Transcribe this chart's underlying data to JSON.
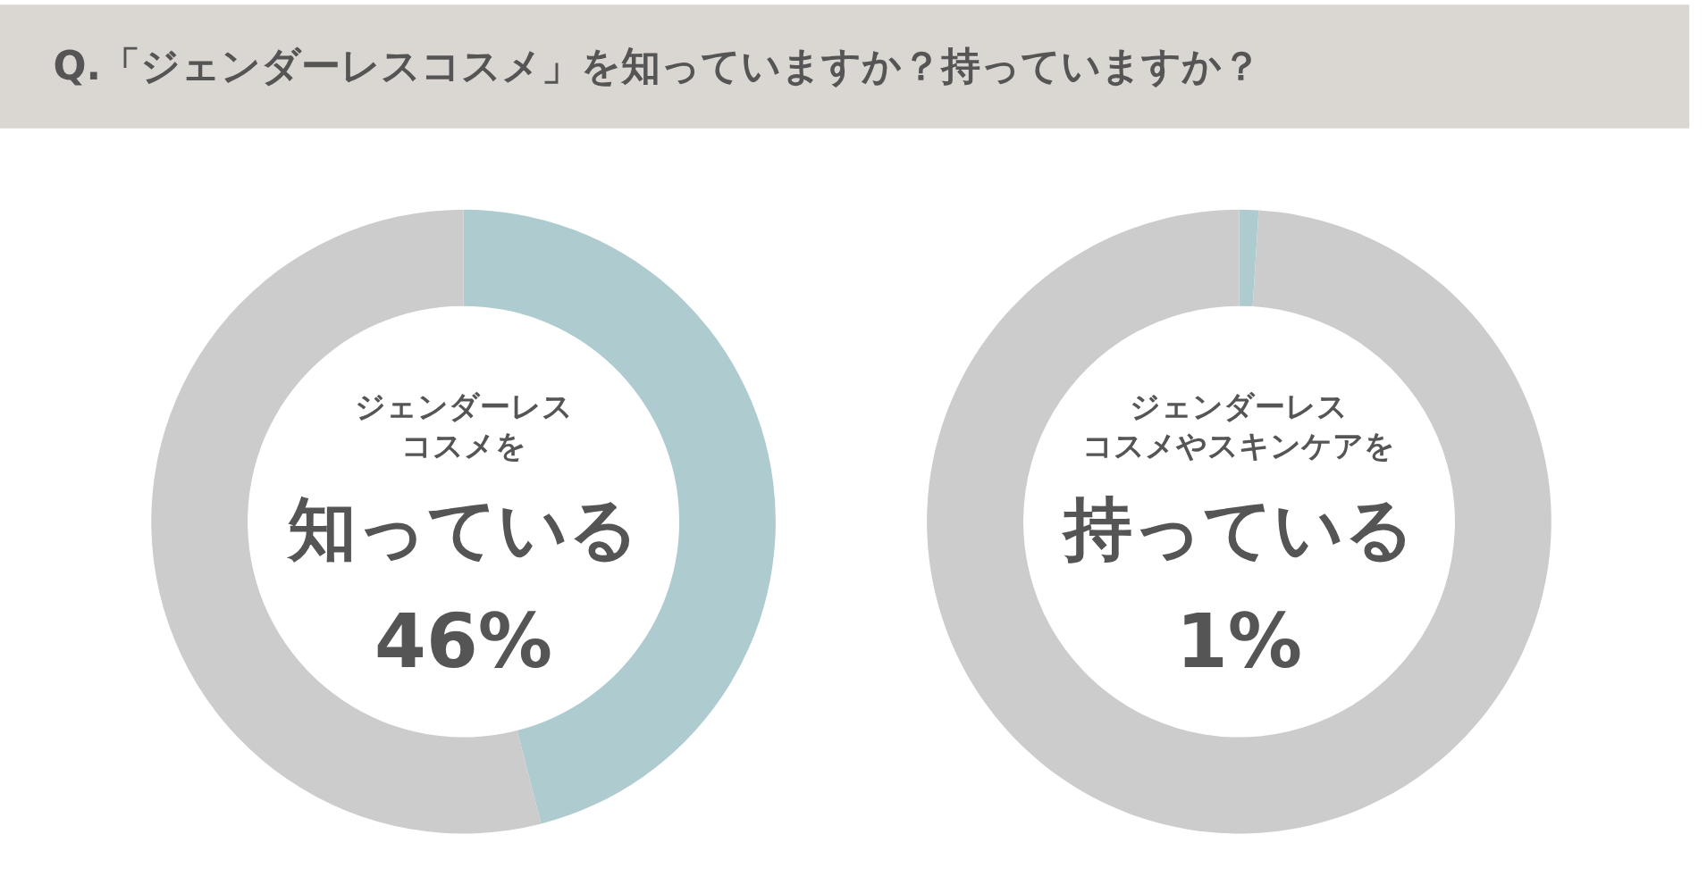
{
  "chart_data": [
    {
      "type": "donut",
      "title": "Q.「ジェンダーレスコスメ」を知っていますか？持っていますか？",
      "categories": [
        null,
        null
      ],
      "values": [
        46,
        54
      ],
      "colors": [
        "#aecbcf",
        "#cccccc"
      ],
      "annotations": [
        "ジェンダーレス",
        "コスメを",
        "知っている",
        "46%"
      ]
    },
    {
      "type": "donut",
      "categories": [
        null,
        null
      ],
      "values": [
        1,
        99
      ],
      "colors": [
        "#aecbcf",
        "#cccccc"
      ],
      "annotations": [
        "ジェンダーレス",
        "コスメやスキンケアを",
        "持っている",
        "1%"
      ]
    }
  ]
}
